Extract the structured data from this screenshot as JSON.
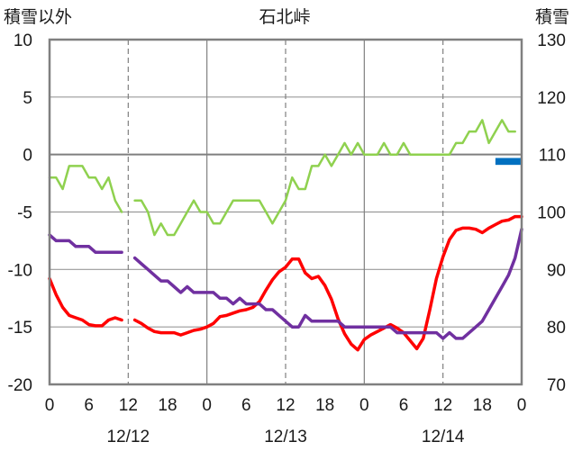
{
  "chart_data": {
    "type": "line",
    "title": "石北峠",
    "left_axis": {
      "label": "積雪以外",
      "range": [
        -20,
        10
      ],
      "ticks": [
        10,
        5,
        0,
        -5,
        -10,
        -15,
        -20
      ]
    },
    "right_axis": {
      "label": "積雪",
      "range": [
        70,
        130
      ],
      "ticks": [
        130,
        120,
        110,
        100,
        90,
        80,
        70
      ]
    },
    "x_axis": {
      "unit": "hours from 12/12 00:00",
      "range": [
        0,
        72
      ],
      "hour_ticks": [
        {
          "x": 0,
          "label": "0"
        },
        {
          "x": 6,
          "label": "6"
        },
        {
          "x": 12,
          "label": "12"
        },
        {
          "x": 18,
          "label": "18"
        },
        {
          "x": 24,
          "label": "0"
        },
        {
          "x": 30,
          "label": "6"
        },
        {
          "x": 36,
          "label": "12"
        },
        {
          "x": 42,
          "label": "18"
        },
        {
          "x": 48,
          "label": "0"
        },
        {
          "x": 54,
          "label": "6"
        },
        {
          "x": 60,
          "label": "12"
        },
        {
          "x": 66,
          "label": "18"
        },
        {
          "x": 72,
          "label": "0"
        }
      ],
      "date_labels": [
        {
          "x": 12,
          "label": "12/12"
        },
        {
          "x": 36,
          "label": "12/13"
        },
        {
          "x": 60,
          "label": "12/14"
        }
      ]
    },
    "grid": {
      "horizontal": true,
      "vertical_dashed": [
        12,
        36,
        60
      ],
      "vertical_solid": [
        24,
        48
      ]
    },
    "series": [
      {
        "color": "#8fd14f",
        "axis": "left",
        "width": 2.5,
        "segments": [
          [
            [
              0,
              -2
            ],
            [
              1,
              -2
            ],
            [
              2,
              -3
            ],
            [
              3,
              -1
            ],
            [
              4,
              -1
            ],
            [
              5,
              -1
            ],
            [
              6,
              -2
            ],
            [
              7,
              -2
            ],
            [
              8,
              -3
            ],
            [
              9,
              -2
            ],
            [
              10,
              -4
            ],
            [
              11,
              -5
            ]
          ],
          [
            [
              13,
              -4
            ],
            [
              14,
              -4
            ],
            [
              15,
              -5
            ],
            [
              16,
              -7
            ],
            [
              17,
              -6
            ],
            [
              18,
              -7
            ],
            [
              19,
              -7
            ],
            [
              20,
              -6
            ],
            [
              21,
              -5
            ],
            [
              22,
              -4
            ],
            [
              23,
              -5
            ],
            [
              24,
              -5
            ],
            [
              25,
              -6
            ],
            [
              26,
              -6
            ],
            [
              27,
              -5
            ],
            [
              28,
              -4
            ],
            [
              29,
              -4
            ],
            [
              30,
              -4
            ],
            [
              31,
              -4
            ],
            [
              32,
              -4
            ],
            [
              33,
              -5
            ],
            [
              34,
              -6
            ],
            [
              35,
              -5
            ],
            [
              36,
              -4
            ],
            [
              37,
              -2
            ],
            [
              38,
              -3
            ],
            [
              39,
              -3
            ],
            [
              40,
              -1
            ],
            [
              41,
              -1
            ],
            [
              42,
              0
            ],
            [
              43,
              -1
            ],
            [
              44,
              0
            ],
            [
              45,
              1
            ],
            [
              46,
              0
            ],
            [
              47,
              1
            ],
            [
              48,
              0
            ],
            [
              49,
              0
            ],
            [
              50,
              0
            ],
            [
              51,
              1
            ],
            [
              52,
              0
            ],
            [
              53,
              0
            ],
            [
              54,
              1
            ],
            [
              55,
              0
            ],
            [
              56,
              0
            ],
            [
              57,
              0
            ],
            [
              58,
              0
            ],
            [
              59,
              0
            ],
            [
              60,
              0
            ],
            [
              61,
              0
            ],
            [
              62,
              1
            ],
            [
              63,
              1
            ],
            [
              64,
              2
            ],
            [
              65,
              2
            ],
            [
              66,
              3
            ],
            [
              67,
              1
            ],
            [
              68,
              2
            ],
            [
              69,
              3
            ],
            [
              70,
              2
            ],
            [
              71,
              2
            ]
          ]
        ]
      },
      {
        "color": "#ff0000",
        "axis": "left",
        "width": 3.5,
        "segments": [
          [
            [
              0,
              -10.8
            ],
            [
              1,
              -12.2
            ],
            [
              2,
              -13.3
            ],
            [
              3,
              -14.0
            ],
            [
              4,
              -14.2
            ],
            [
              5,
              -14.4
            ],
            [
              6,
              -14.8
            ],
            [
              7,
              -14.9
            ],
            [
              8,
              -14.9
            ],
            [
              9,
              -14.4
            ],
            [
              10,
              -14.2
            ],
            [
              11,
              -14.4
            ]
          ],
          [
            [
              13,
              -14.4
            ],
            [
              14,
              -14.7
            ],
            [
              15,
              -15.1
            ],
            [
              16,
              -15.4
            ],
            [
              17,
              -15.5
            ],
            [
              18,
              -15.5
            ],
            [
              19,
              -15.5
            ],
            [
              20,
              -15.7
            ],
            [
              21,
              -15.5
            ],
            [
              22,
              -15.3
            ],
            [
              23,
              -15.2
            ],
            [
              24,
              -15.0
            ],
            [
              25,
              -14.7
            ],
            [
              26,
              -14.1
            ],
            [
              27,
              -14.0
            ],
            [
              28,
              -13.8
            ],
            [
              29,
              -13.6
            ],
            [
              30,
              -13.5
            ],
            [
              31,
              -13.3
            ],
            [
              32,
              -12.8
            ],
            [
              33,
              -11.8
            ],
            [
              34,
              -10.9
            ],
            [
              35,
              -10.2
            ],
            [
              36,
              -9.8
            ],
            [
              37,
              -9.1
            ],
            [
              38,
              -9.1
            ],
            [
              39,
              -10.3
            ],
            [
              40,
              -10.8
            ],
            [
              41,
              -10.6
            ],
            [
              42,
              -11.4
            ],
            [
              43,
              -12.6
            ],
            [
              44,
              -14.3
            ],
            [
              45,
              -15.6
            ],
            [
              46,
              -16.5
            ],
            [
              47,
              -17.0
            ],
            [
              48,
              -16.1
            ],
            [
              49,
              -15.7
            ],
            [
              50,
              -15.4
            ],
            [
              51,
              -15.1
            ],
            [
              52,
              -14.8
            ],
            [
              53,
              -15.1
            ],
            [
              54,
              -15.5
            ],
            [
              55,
              -16.2
            ],
            [
              56,
              -16.9
            ],
            [
              57,
              -16.0
            ],
            [
              58,
              -13.5
            ],
            [
              59,
              -10.8
            ],
            [
              60,
              -8.9
            ],
            [
              61,
              -7.4
            ],
            [
              62,
              -6.6
            ],
            [
              63,
              -6.4
            ],
            [
              64,
              -6.4
            ],
            [
              65,
              -6.5
            ],
            [
              66,
              -6.8
            ],
            [
              67,
              -6.4
            ],
            [
              68,
              -6.1
            ],
            [
              69,
              -5.8
            ],
            [
              70,
              -5.7
            ],
            [
              71,
              -5.4
            ],
            [
              72,
              -5.4
            ]
          ]
        ]
      },
      {
        "color": "#7030a0",
        "axis": "right",
        "width": 3.5,
        "segments": [
          [
            [
              0,
              96
            ],
            [
              1,
              95
            ],
            [
              2,
              95
            ],
            [
              3,
              95
            ],
            [
              4,
              94
            ],
            [
              5,
              94
            ],
            [
              6,
              94
            ],
            [
              7,
              93
            ],
            [
              8,
              93
            ],
            [
              9,
              93
            ],
            [
              10,
              93
            ],
            [
              11,
              93
            ]
          ],
          [
            [
              13,
              92
            ],
            [
              14,
              91
            ],
            [
              15,
              90
            ],
            [
              16,
              89
            ],
            [
              17,
              88
            ],
            [
              18,
              88
            ],
            [
              19,
              87
            ],
            [
              20,
              86
            ],
            [
              21,
              87
            ],
            [
              22,
              86
            ],
            [
              23,
              86
            ],
            [
              24,
              86
            ],
            [
              25,
              86
            ],
            [
              26,
              85
            ],
            [
              27,
              85
            ],
            [
              28,
              84
            ],
            [
              29,
              85
            ],
            [
              30,
              84
            ],
            [
              31,
              84
            ],
            [
              32,
              84
            ],
            [
              33,
              83
            ],
            [
              34,
              83
            ],
            [
              35,
              82
            ],
            [
              36,
              81
            ],
            [
              37,
              80
            ],
            [
              38,
              80
            ],
            [
              39,
              82
            ],
            [
              40,
              81
            ],
            [
              41,
              81
            ],
            [
              42,
              81
            ],
            [
              43,
              81
            ],
            [
              44,
              81
            ],
            [
              45,
              80
            ],
            [
              46,
              80
            ],
            [
              47,
              80
            ],
            [
              48,
              80
            ],
            [
              49,
              80
            ],
            [
              50,
              80
            ],
            [
              51,
              80
            ],
            [
              52,
              80
            ],
            [
              53,
              79
            ],
            [
              54,
              79
            ],
            [
              55,
              79
            ],
            [
              56,
              79
            ],
            [
              57,
              79
            ],
            [
              58,
              79
            ],
            [
              59,
              79
            ],
            [
              60,
              78
            ],
            [
              61,
              79
            ],
            [
              62,
              78
            ],
            [
              63,
              78
            ],
            [
              64,
              79
            ],
            [
              65,
              80
            ],
            [
              66,
              81
            ],
            [
              67,
              83
            ],
            [
              68,
              85
            ],
            [
              69,
              87
            ],
            [
              70,
              89
            ],
            [
              71,
              92
            ],
            [
              72,
              97
            ]
          ]
        ]
      }
    ],
    "bars": [
      {
        "color": "#0070c0",
        "axis": "left",
        "x_start": 68,
        "x_end": 72,
        "top": -0.3,
        "bottom": -0.9
      }
    ]
  }
}
